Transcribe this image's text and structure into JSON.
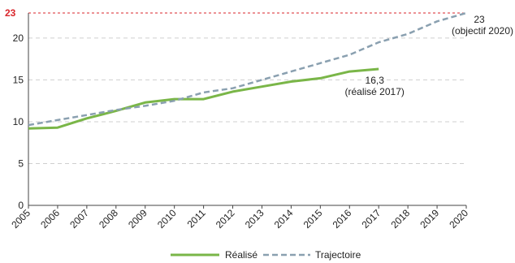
{
  "chart_data": {
    "type": "line",
    "x": [
      2005,
      2006,
      2007,
      2008,
      2009,
      2010,
      2011,
      2012,
      2013,
      2014,
      2015,
      2016,
      2017,
      2018,
      2019,
      2020
    ],
    "x_tick_labels": [
      "2005",
      "2006",
      "2007",
      "2008",
      "2009",
      "2010",
      "2011",
      "2012",
      "2013",
      "2014",
      "2015",
      "2016",
      "2017",
      "2018",
      "2019",
      "2020"
    ],
    "y_ticks": [
      0,
      5,
      10,
      15,
      20
    ],
    "y_tick_labels": [
      "0",
      "5",
      "10",
      "15",
      "20"
    ],
    "ylim": [
      0,
      23
    ],
    "xlim": [
      2005,
      2020
    ],
    "grid": "horizontal dashed",
    "legend_placement": "bottom-center",
    "target": {
      "value": 23,
      "label": "23",
      "color": "#d9262b"
    },
    "series": [
      {
        "name": "Réalisé",
        "style": "solid",
        "color": "#7ab648",
        "values": [
          9.2,
          9.3,
          10.4,
          11.3,
          12.3,
          12.7,
          12.7,
          13.6,
          14.2,
          14.8,
          15.2,
          16.0,
          16.3,
          null,
          null,
          null
        ]
      },
      {
        "name": "Trajectoire",
        "style": "dashed",
        "color": "#8aa0b0",
        "values": [
          9.6,
          10.2,
          10.8,
          11.4,
          11.9,
          12.5,
          13.5,
          14.0,
          15.0,
          16.0,
          17.0,
          18.0,
          19.5,
          20.5,
          22.0,
          23.0
        ]
      }
    ],
    "annotations": [
      {
        "lines": [
          "16,3",
          "(réalisé 2017)"
        ],
        "x": 2017,
        "y": 16.3
      },
      {
        "lines": [
          "23",
          "(objectif 2020)"
        ],
        "x": 2020,
        "y": 23
      }
    ]
  }
}
